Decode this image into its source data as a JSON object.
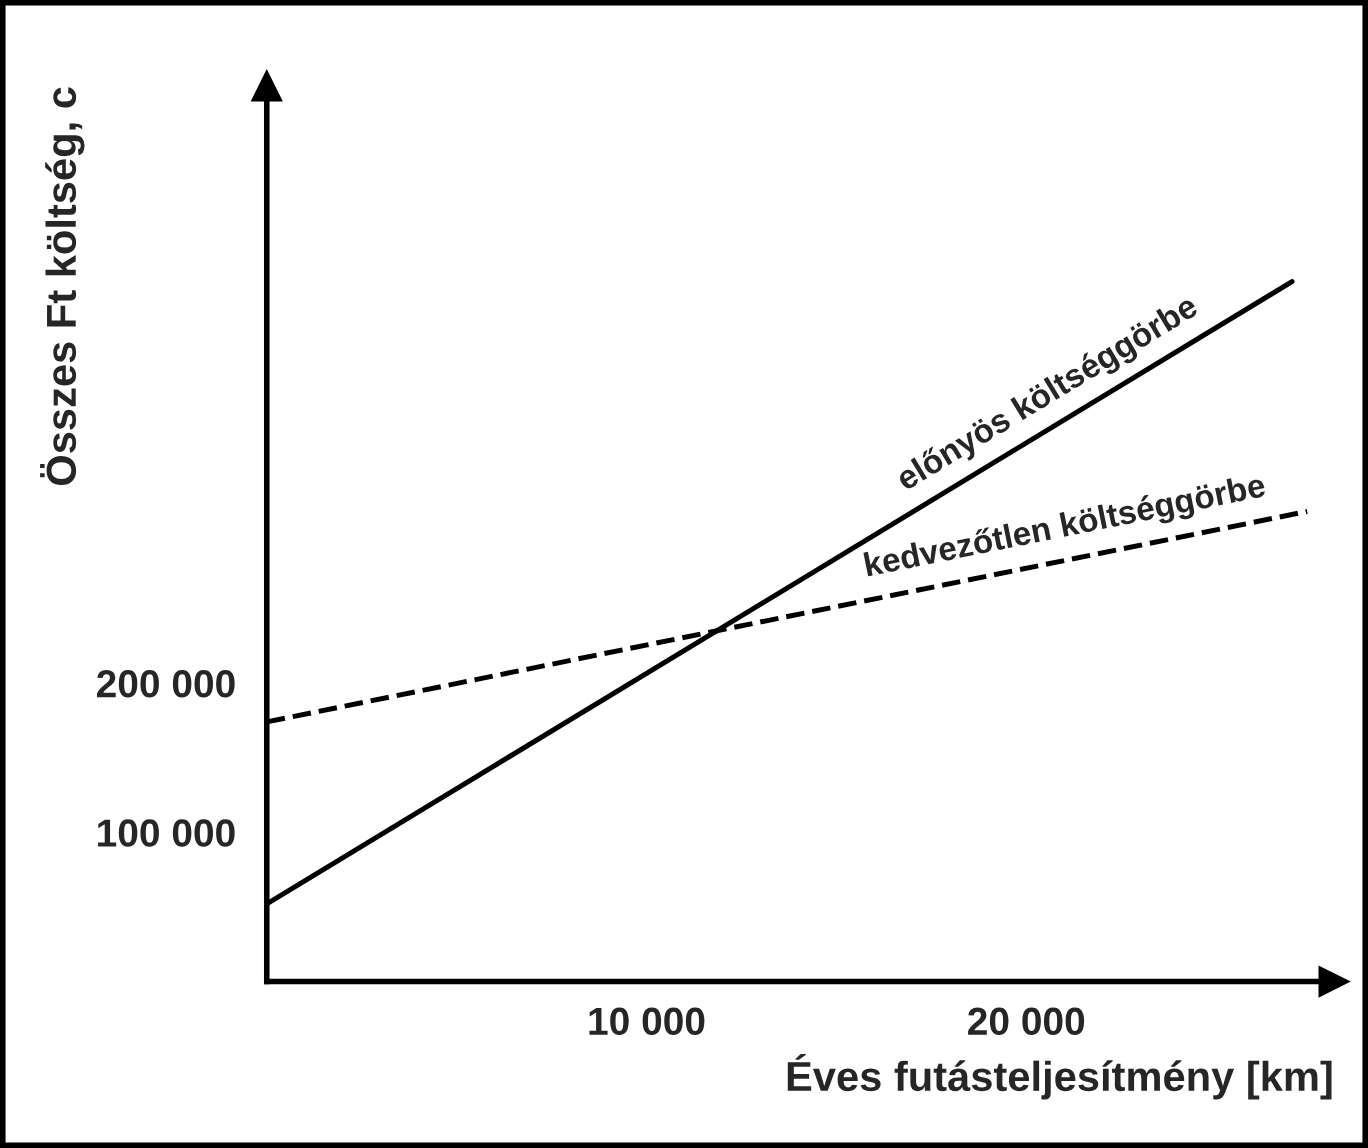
{
  "chart_data": {
    "type": "line",
    "xlabel": "Éves futásteljesítmény [km]",
    "ylabel": "Összes Ft költség, c",
    "series": [
      {
        "color": "#000000",
        "line_style": "solid",
        "x": [
          0,
          27000
        ],
        "values": [
          52000,
          469000
        ]
      },
      {
        "color": "#000000",
        "line_style": "dashed",
        "x": [
          0,
          27400
        ],
        "values": [
          174000,
          315000
        ]
      }
    ],
    "xlim": [
      0,
      28100
    ],
    "ylim": [
      0,
      600000
    ],
    "xticks": [
      {
        "value": 10000,
        "label": "10 000"
      },
      {
        "value": 20000,
        "label": "20 000"
      }
    ],
    "yticks": [
      {
        "value": 100000,
        "label": "100 000"
      },
      {
        "value": 200000,
        "label": "200 000"
      }
    ],
    "annotations": [
      "előnyös költséggörbe",
      "kedvezőtlen költséggörbe"
    ],
    "grid": false,
    "legend": false,
    "marker": "none"
  }
}
